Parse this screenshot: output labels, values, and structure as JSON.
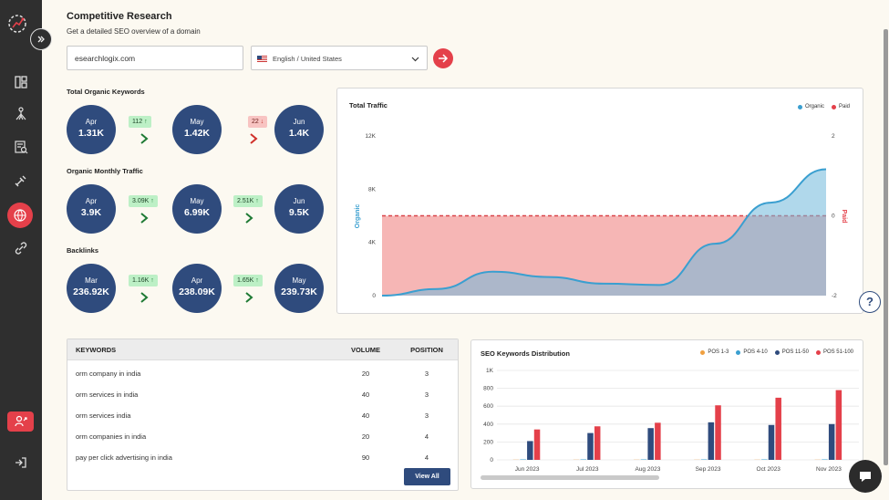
{
  "page": {
    "title": "Competitive Research",
    "subtitle": "Get a detailed SEO overview of a domain"
  },
  "search": {
    "domain_value": "esearchlogix.com",
    "language": "English / United States"
  },
  "sections": [
    {
      "label": "Total Organic Keywords",
      "items": [
        {
          "month": "Apr",
          "value": "1.31K"
        },
        {
          "month": "May",
          "value": "1.42K"
        },
        {
          "month": "Jun",
          "value": "1.4K"
        }
      ],
      "changes": [
        {
          "text": "112",
          "dir": "up"
        },
        {
          "text": "22",
          "dir": "down"
        }
      ]
    },
    {
      "label": "Organic Monthly Traffic",
      "items": [
        {
          "month": "Apr",
          "value": "3.9K"
        },
        {
          "month": "May",
          "value": "6.99K"
        },
        {
          "month": "Jun",
          "value": "9.5K"
        }
      ],
      "changes": [
        {
          "text": "3.09K",
          "dir": "up"
        },
        {
          "text": "2.51K",
          "dir": "up"
        }
      ]
    },
    {
      "label": "Backlinks",
      "items": [
        {
          "month": "Mar",
          "value": "236.92K"
        },
        {
          "month": "Apr",
          "value": "238.09K"
        },
        {
          "month": "May",
          "value": "239.73K"
        }
      ],
      "changes": [
        {
          "text": "1.16K",
          "dir": "up"
        },
        {
          "text": "1.65K",
          "dir": "up"
        }
      ]
    }
  ],
  "keywords": {
    "headers": {
      "keyword": "KEYWORDS",
      "volume": "VOLUME",
      "position": "POSITION"
    },
    "rows": [
      {
        "keyword": "orm company in india",
        "volume": "20",
        "position": "3"
      },
      {
        "keyword": "orm services in india",
        "volume": "40",
        "position": "3"
      },
      {
        "keyword": "orm services india",
        "volume": "40",
        "position": "3"
      },
      {
        "keyword": "orm companies in india",
        "volume": "20",
        "position": "4"
      },
      {
        "keyword": "pay per click advertising in india",
        "volume": "90",
        "position": "4"
      }
    ],
    "view_all_label": "View All"
  },
  "help_label": "?",
  "colors": {
    "accent": "#e4404a",
    "navy": "#2f4b7d",
    "organic": "#3a9fd0",
    "paid": "#e4404a",
    "pos1": "#f0a040",
    "pos2": "#3a9fd0",
    "pos3": "#2f4b7d",
    "pos4": "#e4404a"
  },
  "chart_data": [
    {
      "type": "area",
      "title": "Total Traffic",
      "legend": [
        "Organic",
        "Paid"
      ],
      "legend_placement": "top-right",
      "ylabel": "Organic",
      "y2label": "Paid",
      "ylim": [
        0,
        12000
      ],
      "yticks": [
        "0",
        "4K",
        "8K",
        "12K"
      ],
      "y2lim": [
        -2,
        2
      ],
      "y2ticks": [
        "-2",
        "0",
        "2"
      ],
      "series": [
        {
          "name": "Organic",
          "values": [
            0,
            500,
            1800,
            1400,
            900,
            800,
            3900,
            6990,
            9500
          ]
        },
        {
          "name": "Paid",
          "values": [
            0,
            0,
            0,
            0,
            0,
            0,
            0,
            0,
            0
          ]
        }
      ]
    },
    {
      "type": "bar",
      "title": "SEO Keywords Distribution",
      "legend": [
        "POS 1-3",
        "POS 4-10",
        "POS 11-50",
        "POS 51-100"
      ],
      "legend_placement": "top-right",
      "categories": [
        "Jun 2023",
        "Jul 2023",
        "Aug 2023",
        "Sep 2023",
        "Oct 2023",
        "Nov 2023"
      ],
      "ylim": [
        0,
        1000
      ],
      "yticks": [
        "0",
        "200",
        "400",
        "600",
        "800",
        "1K"
      ],
      "series": [
        {
          "name": "POS 1-3",
          "values": [
            2,
            2,
            2,
            2,
            2,
            2
          ]
        },
        {
          "name": "POS 4-10",
          "values": [
            5,
            5,
            5,
            5,
            5,
            5
          ]
        },
        {
          "name": "POS 11-50",
          "values": [
            210,
            300,
            355,
            420,
            390,
            400
          ]
        },
        {
          "name": "POS 51-100",
          "values": [
            340,
            375,
            415,
            610,
            695,
            780
          ]
        }
      ]
    }
  ]
}
